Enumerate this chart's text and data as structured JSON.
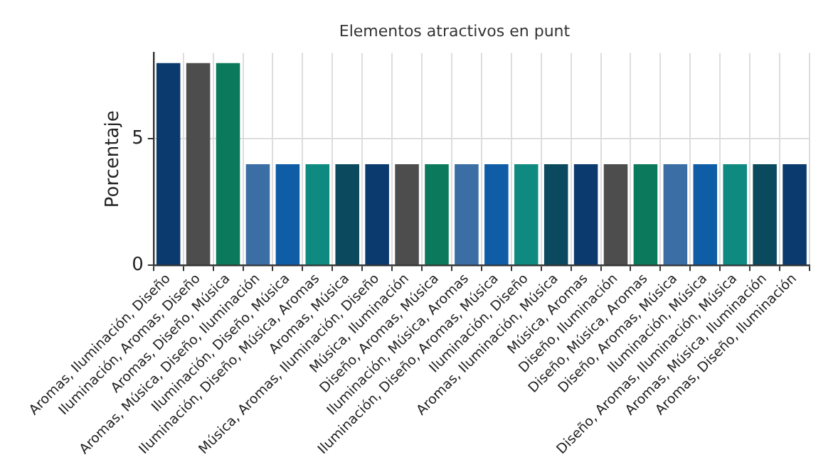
{
  "chart_data": {
    "type": "bar",
    "title": "Elementos atractivos en punt",
    "ylabel": "Porcentaje",
    "categories": [
      "Aromas, Iluminación, Diseño",
      "Iluminación, Aromas, Diseño",
      "Aromas, Diseño, Música",
      "Aromas, Música, Diseño, Iluminación",
      "Iluminación, Diseño, Música",
      "Iluminación, Diseño, Música, Aromas",
      "Aromas, Música",
      "Música, Aromas, Iluminación, Diseño",
      "Música, Iluminación",
      "Diseño, Aromas, Música",
      "Iluminación, Música, Aromas",
      "Iluminación, Diseño, Aromas, Música",
      "Iluminación, Diseño",
      "Aromas, Iluminación, Música",
      "Música, Aromas",
      "Diseño, Iluminación",
      "Diseño, Música, Aromas",
      "Diseño, Aromas, Música",
      "Iluminación, Música",
      "Diseño, Aromas, Iluminación, Música",
      "Aromas, Música, Iluminación",
      "Aromas, Diseño, Iluminación"
    ],
    "values": [
      8,
      8,
      8,
      4,
      4,
      4,
      4,
      4,
      4,
      4,
      4,
      4,
      4,
      4,
      4,
      4,
      4,
      4,
      4,
      4,
      4,
      4
    ],
    "colors": [
      "#0b3a6e",
      "#4d4d4d",
      "#0b7a5c",
      "#3a6ea5",
      "#0e5da6",
      "#0f8a80",
      "#0b4a5e",
      "#0b3a6e",
      "#4d4d4d",
      "#0b7a5c",
      "#3a6ea5",
      "#0e5da6",
      "#0f8a80",
      "#0b4a5e",
      "#0b3a6e",
      "#4d4d4d",
      "#0b7a5c",
      "#3a6ea5",
      "#0e5da6",
      "#0f8a80",
      "#0b4a5e",
      "#0b3a6e"
    ],
    "ylim": [
      0,
      8.4
    ],
    "yticks": [
      0,
      5
    ],
    "grid": true
  }
}
